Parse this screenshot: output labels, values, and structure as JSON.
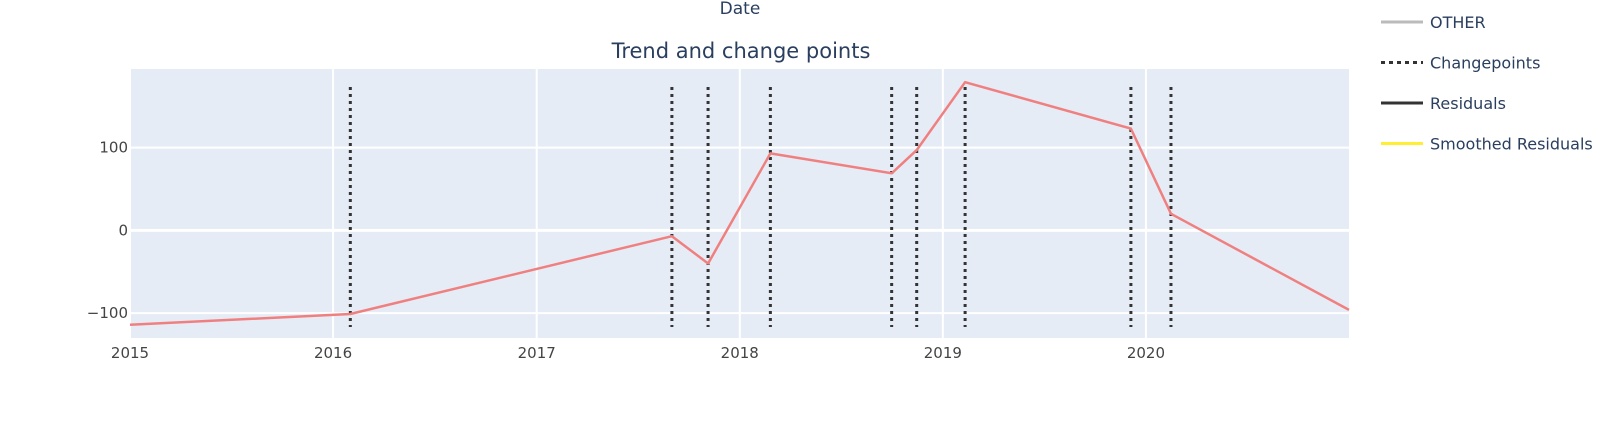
{
  "chart_data": {
    "type": "line",
    "title": "Trend and change points",
    "top_axis_label": "Date",
    "xlabel": "",
    "ylabel": "",
    "x_ticks": [
      "2015",
      "2016",
      "2017",
      "2018",
      "2019",
      "2020"
    ],
    "y_ticks": [
      "−100",
      "0",
      "100"
    ],
    "y_tick_values": [
      -100,
      0,
      100
    ],
    "xlim": [
      "2015-01-01",
      "2020-12-31"
    ],
    "ylim": [
      -130,
      195
    ],
    "grid": true,
    "legend_position": "right",
    "series": [
      {
        "color": "#f08080",
        "points": [
          {
            "x": "2015-01-01",
            "y": -114
          },
          {
            "x": "2016-02-01",
            "y": -101
          },
          {
            "x": "2017-09-01",
            "y": -7
          },
          {
            "x": "2017-11-05",
            "y": -40
          },
          {
            "x": "2018-02-25",
            "y": 93
          },
          {
            "x": "2018-10-01",
            "y": 69
          },
          {
            "x": "2018-11-15",
            "y": 97
          },
          {
            "x": "2019-02-10",
            "y": 179
          },
          {
            "x": "2019-12-05",
            "y": 123
          },
          {
            "x": "2020-02-15",
            "y": 20
          },
          {
            "x": "2020-12-31",
            "y": -96
          }
        ]
      }
    ],
    "changepoints": [
      "2016-02-01",
      "2017-09-01",
      "2017-11-05",
      "2018-02-25",
      "2018-10-01",
      "2018-11-15",
      "2019-02-10",
      "2019-12-05",
      "2020-02-15"
    ],
    "changepoint_color": "#333333",
    "legend": [
      {
        "label": "OTHER",
        "color": "#bbbbbb",
        "dash": "solid"
      },
      {
        "label": "Changepoints",
        "color": "#333333",
        "dash": "dot"
      },
      {
        "label": "Residuals",
        "color": "#333333",
        "dash": "solid"
      },
      {
        "label": "Smoothed Residuals",
        "color": "#ffee33",
        "dash": "solid"
      }
    ]
  }
}
